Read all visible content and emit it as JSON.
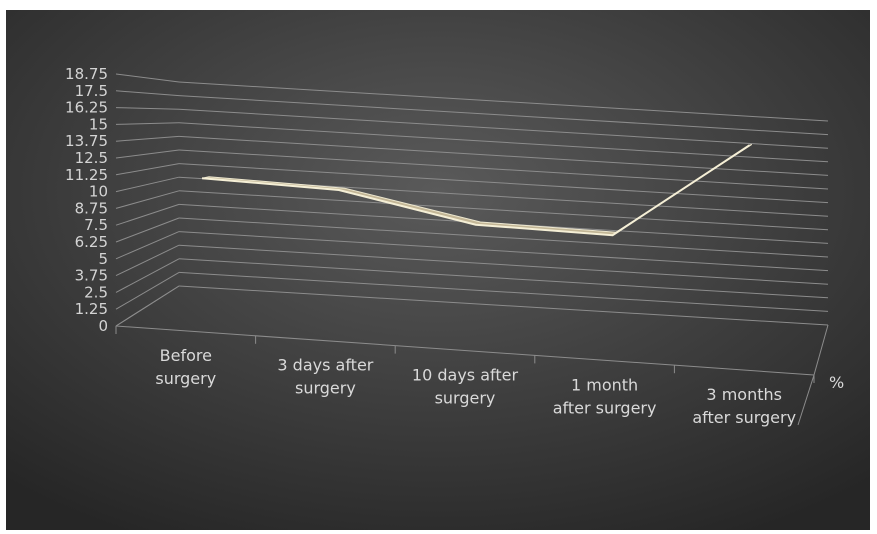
{
  "chart_data": {
    "type": "line",
    "style": "3d-line",
    "categories": [
      [
        "Before",
        "surgery"
      ],
      [
        "3 days after",
        "surgery"
      ],
      [
        "10 days after",
        "surgery"
      ],
      [
        "1 month",
        "after surgery"
      ],
      [
        "3 months",
        "after surgery"
      ]
    ],
    "series": [
      {
        "name": "%",
        "values": [
          11.1,
          10.9,
          8.9,
          8.8,
          16.6
        ]
      }
    ],
    "y_ticks": [
      "0",
      "1.25",
      "2.5",
      "3.75",
      "5",
      "6.25",
      "7.5",
      "8.75",
      "10",
      "11.25",
      "12.5",
      "13.75",
      "15",
      "16.25",
      "17.5",
      "18.75"
    ],
    "ylim": [
      0,
      18.75
    ],
    "grid": true,
    "colors": {
      "background_light": "#5a5a5a",
      "background_dark": "#262626",
      "ribbon_fill": "#c9bc9a",
      "ribbon_edge": "#f5efd6",
      "gridline": "#8c8c8c",
      "text": "#d9d9d9"
    }
  }
}
